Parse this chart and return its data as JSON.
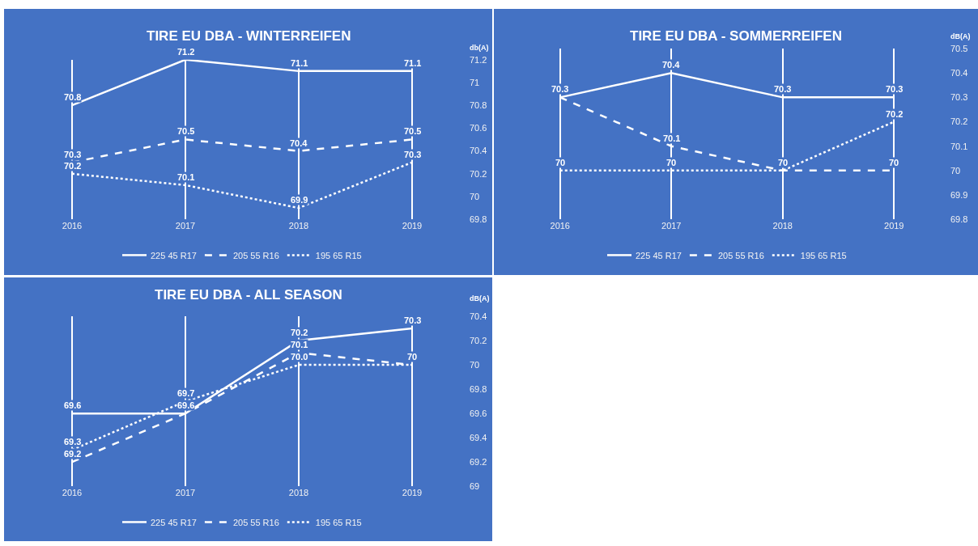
{
  "chart_data": [
    {
      "type": "line",
      "title": "TIRE EU DBA - WINTERREIFEN",
      "ylabel": "db(A)",
      "categories": [
        "2016",
        "2017",
        "2018",
        "2019"
      ],
      "ylim": [
        69.8,
        71.2
      ],
      "yticks": [
        69.8,
        70,
        70.2,
        70.4,
        70.6,
        70.8,
        71,
        71.2
      ],
      "grid": "x",
      "legend": "bottom",
      "data_labels": true,
      "series": [
        {
          "name": "225 45 R17",
          "color": "#ffffff",
          "line_style": "solid",
          "values": [
            70.8,
            71.2,
            71.1,
            71.1
          ]
        },
        {
          "name": "205 55 R16",
          "color": "#ffffff",
          "line_style": "dashed",
          "values": [
            70.3,
            70.5,
            70.4,
            70.5
          ]
        },
        {
          "name": "195 65 R15",
          "color": "#ffffff",
          "line_style": "dotted",
          "values": [
            70.2,
            70.1,
            69.9,
            70.3
          ]
        }
      ]
    },
    {
      "type": "line",
      "title": "TIRE EU DBA - SOMMERREIFEN",
      "ylabel": "dB(A)",
      "categories": [
        "2016",
        "2017",
        "2018",
        "2019"
      ],
      "ylim": [
        69.8,
        70.5
      ],
      "yticks": [
        69.8,
        69.9,
        70,
        70.1,
        70.2,
        70.3,
        70.4,
        70.5
      ],
      "grid": "x",
      "legend": "bottom",
      "data_labels": true,
      "series": [
        {
          "name": "225 45 R17",
          "color": "#ffffff",
          "line_style": "solid",
          "values": [
            70.3,
            70.4,
            70.3,
            70.3
          ]
        },
        {
          "name": "205 55 R16",
          "color": "#ffffff",
          "line_style": "dashed",
          "values": [
            70.3,
            70.1,
            70,
            70
          ],
          "value_labels": [
            null,
            "70.1",
            "70",
            "70"
          ]
        },
        {
          "name": "195 65 R15",
          "color": "#ffffff",
          "line_style": "dotted",
          "values": [
            70,
            70,
            70,
            70.2
          ],
          "value_labels": [
            "70",
            "70",
            null,
            "70.2"
          ]
        }
      ]
    },
    {
      "type": "line",
      "title": "TIRE EU DBA - ALL SEASON",
      "ylabel": "dB(A)",
      "categories": [
        "2016",
        "2017",
        "2018",
        "2019"
      ],
      "ylim": [
        69,
        70.4
      ],
      "yticks": [
        69,
        69.2,
        69.4,
        69.6,
        69.8,
        70,
        70.2,
        70.4
      ],
      "grid": "x",
      "legend": "bottom",
      "series": [
        {
          "name": "225 45 R17",
          "color": "#ffffff",
          "line_style": "solid",
          "values": [
            69.6,
            69.6,
            70.2,
            70.3
          ],
          "value_labels": [
            "69.6",
            "69.6",
            "70.2",
            "70.3"
          ]
        },
        {
          "name": "205 55 R16",
          "color": "#ffffff",
          "line_style": "dashed",
          "values": [
            69.2,
            69.6,
            70.1,
            70
          ],
          "value_labels": [
            "69.2",
            null,
            "70.1",
            null
          ]
        },
        {
          "name": "195 65 R15",
          "color": "#ffffff",
          "line_style": "dotted",
          "values": [
            69.3,
            69.7,
            70,
            70
          ],
          "value_labels": [
            "69.3",
            "69.7",
            "70.0",
            "70"
          ]
        }
      ]
    }
  ]
}
